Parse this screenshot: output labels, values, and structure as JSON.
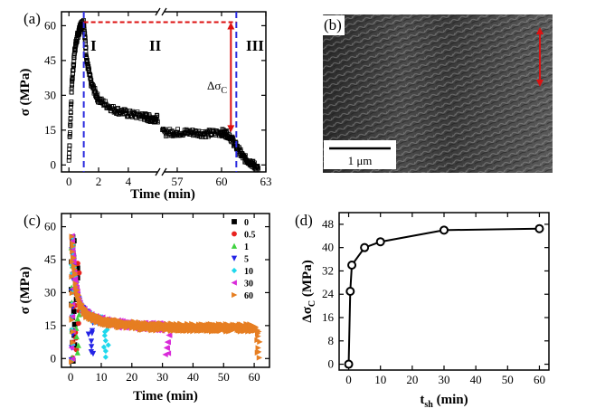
{
  "chart_data": [
    {
      "panel": "(a)",
      "type": "scatter",
      "xlabel": "Time (min)",
      "ylabel": "σ (MPa)",
      "ylim": [
        -3,
        66
      ],
      "x_axis_break": {
        "left_range": [
          -0.5,
          6.2
        ],
        "right_range": [
          55.9,
          63
        ]
      },
      "xticks": [
        "0",
        "2",
        "4",
        "57",
        "60",
        "63"
      ],
      "yticks": [
        "0",
        "15",
        "30",
        "45",
        "60"
      ],
      "regions": [
        "I",
        "II",
        "III"
      ],
      "annotation": "Δσ",
      "annotation_sub": "C",
      "dashed_lines": {
        "x": [
          1,
          61
        ],
        "peak_y": 61.5,
        "plateau_y": 14
      },
      "series": [
        {
          "marker": "open-square",
          "x": [
            0,
            0.2,
            0.4,
            0.6,
            0.8,
            1.0,
            1.2,
            1.5,
            2.0,
            3.0,
            4.0,
            5.0,
            5.5,
            6.0,
            56,
            57,
            58,
            59,
            60,
            60.5,
            61,
            61.5,
            62,
            62.5
          ],
          "y": [
            2,
            35,
            50,
            56,
            60,
            61.5,
            45,
            35,
            28,
            24,
            22,
            21,
            20,
            20,
            14,
            14,
            14,
            13.5,
            14,
            13,
            8,
            3,
            1,
            -2
          ]
        }
      ]
    },
    {
      "panel": "(b)",
      "type": "image",
      "scale_bar": "1 μm"
    },
    {
      "panel": "(c)",
      "type": "scatter",
      "xlabel": "Time (min)",
      "ylabel": "σ (MPa)",
      "xlim": [
        -3,
        65
      ],
      "ylim": [
        -4,
        66
      ],
      "xticks": [
        "0",
        "10",
        "20",
        "30",
        "40",
        "50",
        "60"
      ],
      "yticks": [
        "0",
        "15",
        "30",
        "45",
        "60"
      ],
      "series": [
        {
          "name": "0",
          "color": "#000000",
          "marker": "square",
          "t_sh": 0
        },
        {
          "name": "0.5",
          "color": "#e8221f",
          "marker": "circle",
          "t_sh": 0.5
        },
        {
          "name": "1",
          "color": "#3fd23f",
          "marker": "triangle-up",
          "t_sh": 1
        },
        {
          "name": "5",
          "color": "#2424e6",
          "marker": "triangle-down",
          "t_sh": 5
        },
        {
          "name": "10",
          "color": "#20d8ec",
          "marker": "diamond",
          "t_sh": 10
        },
        {
          "name": "30",
          "color": "#d92ad9",
          "marker": "triangle-left",
          "t_sh": 30
        },
        {
          "name": "60",
          "color": "#e67e22",
          "marker": "triangle-right",
          "t_sh": 60
        }
      ]
    },
    {
      "panel": "(d)",
      "type": "line",
      "xlabel": "t",
      "xlabel_sub": "sh",
      "xlabel_suffix": " (min)",
      "ylabel": "Δσ",
      "ylabel_sub": "C",
      "ylabel_suffix": " (MPa)",
      "xlim": [
        -3,
        63
      ],
      "ylim": [
        -2,
        52
      ],
      "xticks": [
        "0",
        "10",
        "20",
        "30",
        "40",
        "50",
        "60"
      ],
      "yticks": [
        "0",
        "8",
        "16",
        "24",
        "32",
        "40",
        "48"
      ],
      "series": [
        {
          "marker": "open-circle",
          "x": [
            0,
            0.5,
            1,
            5,
            10,
            30,
            60
          ],
          "y": [
            0,
            25,
            34,
            40,
            42,
            46,
            46.5
          ]
        }
      ]
    }
  ]
}
